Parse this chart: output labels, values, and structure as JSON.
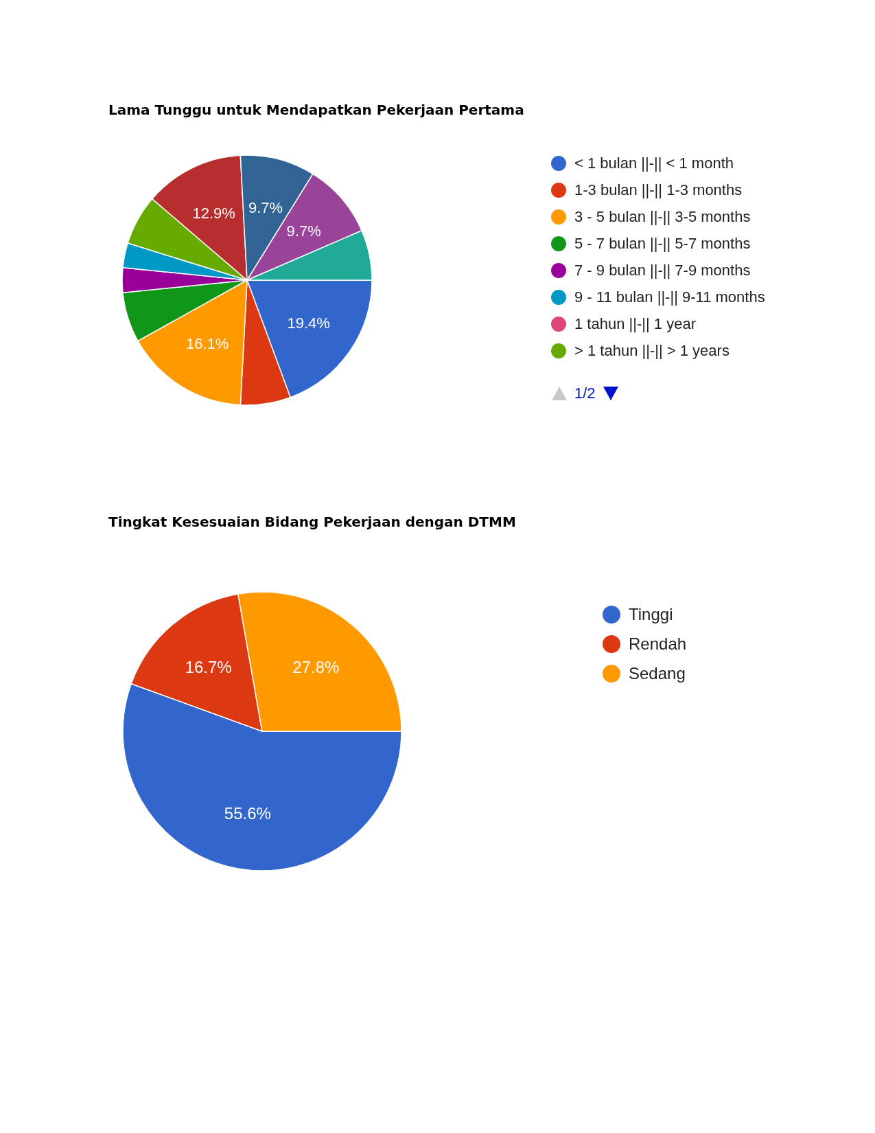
{
  "chart_data": [
    {
      "type": "pie",
      "title": "Lama Tunggu untuk Mendapatkan Pekerjaan Pertama",
      "categories": [
        "< 1 bulan ||-|| < 1 month",
        "1-3 bulan ||-|| 1-3 months",
        "3 - 5 bulan ||-|| 3-5 months",
        "5 - 7 bulan ||-|| 5-7 months",
        "7 - 9 bulan ||-|| 7-9 months",
        "9 - 11 bulan ||-|| 9-11 months",
        "1 tahun ||-|| 1 year",
        "> 1 tahun ||-|| > 1 years",
        null,
        null,
        null,
        null
      ],
      "values": [
        19.4,
        6.5,
        16.1,
        6.5,
        3.2,
        3.2,
        0,
        6.5,
        12.9,
        9.7,
        9.7,
        6.5
      ],
      "colors": [
        "#3366cc",
        "#dc3912",
        "#ff9900",
        "#109618",
        "#990099",
        "#0099c6",
        "#dd4477",
        "#66aa00",
        "#b82e2e",
        "#316395",
        "#994499",
        "#22aa99"
      ],
      "value_labels": [
        "19.4%",
        null,
        "16.1%",
        null,
        null,
        null,
        null,
        null,
        "12.9%",
        "9.7%",
        "9.7%",
        null
      ],
      "legend": "right",
      "annotations": [
        "1/2"
      ]
    },
    {
      "type": "pie",
      "title": "Tingkat Kesesuaian Bidang Pekerjaan dengan DTMM",
      "categories": [
        "Tinggi",
        "Rendah",
        "Sedang"
      ],
      "values": [
        55.6,
        16.7,
        27.8
      ],
      "colors": [
        "#3366cc",
        "#dc3912",
        "#ff9900"
      ],
      "value_labels": [
        "55.6%",
        "16.7%",
        "27.8%"
      ],
      "legend": "right"
    }
  ]
}
